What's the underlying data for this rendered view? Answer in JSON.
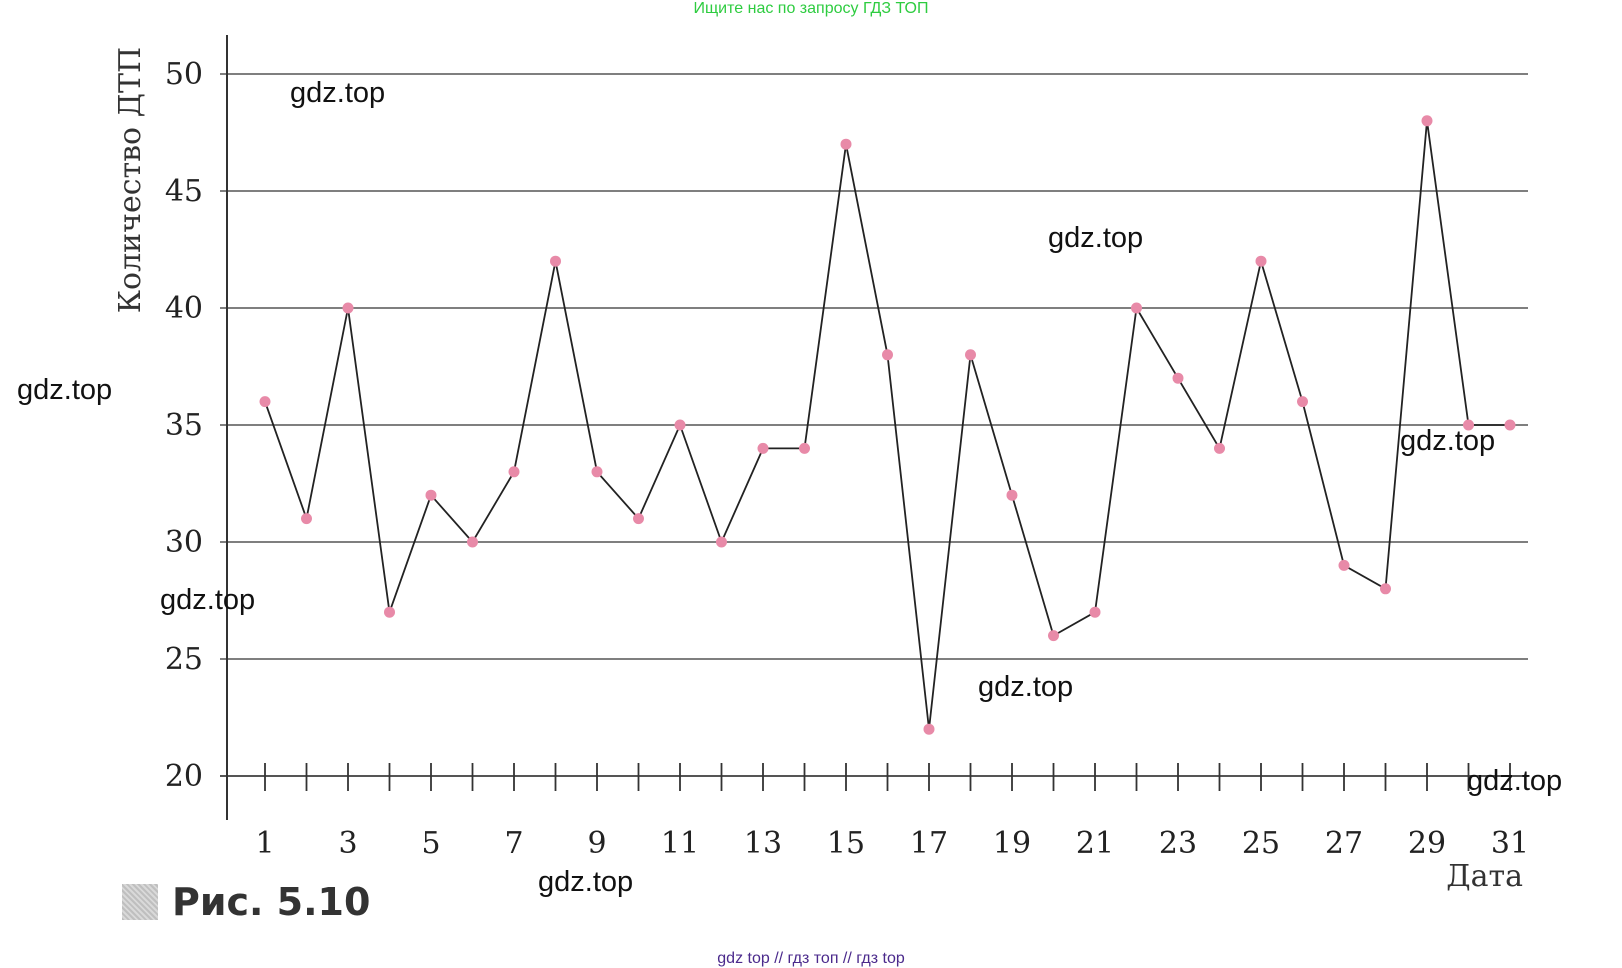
{
  "top_banner": "Ищите нас по запросу ГДЗ ТОП",
  "watermarks": [
    "gdz.top",
    "gdz.top",
    "gdz.top",
    "gdz.top",
    "gdz.top",
    "gdz.top",
    "gdz.top",
    "gdz.top"
  ],
  "figure_caption": "Рис. 5.10",
  "bottom_links": "gdz top  //  гдз топ  //  гдз top",
  "chart_data": {
    "type": "line",
    "xlabel": "Дата",
    "ylabel": "Количество ДТП",
    "x": [
      1,
      2,
      3,
      4,
      5,
      6,
      7,
      8,
      9,
      10,
      11,
      12,
      13,
      14,
      15,
      16,
      17,
      18,
      19,
      20,
      21,
      22,
      23,
      24,
      25,
      26,
      27,
      28,
      29,
      30,
      31
    ],
    "y": [
      36,
      31,
      40,
      27,
      32,
      30,
      33,
      42,
      33,
      31,
      35,
      30,
      34,
      34,
      47,
      38,
      22,
      38,
      32,
      26,
      27,
      40,
      37,
      34,
      42,
      36,
      29,
      28,
      48,
      35,
      35
    ],
    "xticks": [
      1,
      3,
      5,
      7,
      9,
      11,
      13,
      15,
      17,
      19,
      21,
      23,
      25,
      27,
      29,
      31
    ],
    "yticks": [
      20,
      25,
      30,
      35,
      40,
      45,
      50
    ],
    "xlim": [
      1,
      31
    ],
    "ylim": [
      20,
      50
    ],
    "grid": "horizontal",
    "line_color": "#222222",
    "marker_color": "#e88aa8"
  }
}
